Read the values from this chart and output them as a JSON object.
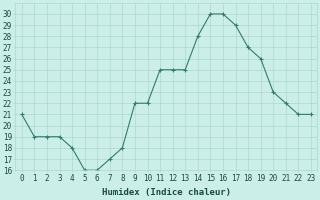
{
  "x": [
    0,
    1,
    2,
    3,
    4,
    5,
    6,
    7,
    8,
    9,
    10,
    11,
    12,
    13,
    14,
    15,
    16,
    17,
    18,
    19,
    20,
    21,
    22,
    23
  ],
  "y": [
    21,
    19,
    19,
    19,
    18,
    16,
    16,
    17,
    18,
    22,
    22,
    25,
    25,
    25,
    28,
    30,
    30,
    29,
    27,
    26,
    23,
    22,
    21,
    21
  ],
  "line_color": "#2e7d6e",
  "marker": "+",
  "bg_color": "#cceee8",
  "grid_color": "#aad8d0",
  "xlabel": "Humidex (Indice chaleur)",
  "ylim": [
    16,
    31
  ],
  "xlim": [
    -0.5,
    23.5
  ],
  "yticks": [
    16,
    17,
    18,
    19,
    20,
    21,
    22,
    23,
    24,
    25,
    26,
    27,
    28,
    29,
    30
  ],
  "xticks": [
    0,
    1,
    2,
    3,
    4,
    5,
    6,
    7,
    8,
    9,
    10,
    11,
    12,
    13,
    14,
    15,
    16,
    17,
    18,
    19,
    20,
    21,
    22,
    23
  ],
  "tick_label_color": "#1a4a44",
  "xlabel_color": "#1a4a44",
  "tick_fontsize": 5.5,
  "xlabel_fontsize": 6.5
}
